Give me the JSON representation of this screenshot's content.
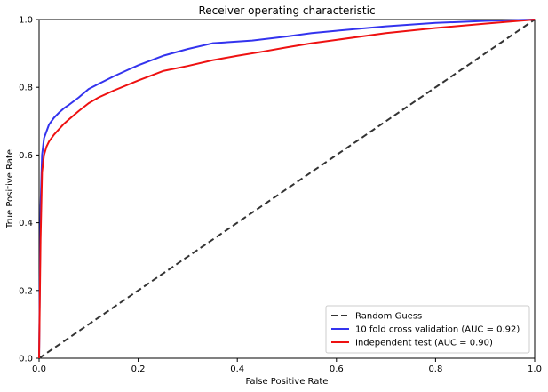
{
  "chart_data": {
    "type": "line",
    "title": "Receiver operating characteristic",
    "xlabel": "False Positive Rate",
    "ylabel": "True Positive Rate",
    "xlim": [
      0,
      1
    ],
    "ylim": [
      0,
      1
    ],
    "xticks": [
      "0.0",
      "0.2",
      "0.4",
      "0.6",
      "0.8",
      "1.0"
    ],
    "yticks": [
      "0.0",
      "0.2",
      "0.4",
      "0.6",
      "0.8",
      "1.0"
    ],
    "grid": false,
    "legend_position": "lower-right",
    "series": [
      {
        "name": "Random Guess",
        "color": "#333333",
        "style": "dashed",
        "x": [
          0,
          1
        ],
        "y": [
          0,
          1
        ]
      },
      {
        "name": "10 fold cross validation (AUC = 0.92)",
        "color": "#3333ee",
        "style": "solid",
        "x": [
          0,
          0.003,
          0.006,
          0.01,
          0.015,
          0.02,
          0.03,
          0.04,
          0.05,
          0.06,
          0.08,
          0.1,
          0.12,
          0.15,
          0.18,
          0.2,
          0.25,
          0.3,
          0.35,
          0.4,
          0.43,
          0.5,
          0.55,
          0.6,
          0.7,
          0.8,
          0.9,
          1.0
        ],
        "y": [
          0,
          0.45,
          0.6,
          0.65,
          0.67,
          0.69,
          0.71,
          0.725,
          0.738,
          0.748,
          0.77,
          0.795,
          0.81,
          0.832,
          0.852,
          0.865,
          0.893,
          0.913,
          0.93,
          0.935,
          0.938,
          0.95,
          0.96,
          0.967,
          0.98,
          0.99,
          0.996,
          1.0
        ]
      },
      {
        "name": "Independent test (AUC = 0.90)",
        "color": "#ee1111",
        "style": "solid",
        "x": [
          0,
          0.003,
          0.006,
          0.01,
          0.015,
          0.02,
          0.03,
          0.04,
          0.05,
          0.06,
          0.08,
          0.1,
          0.12,
          0.15,
          0.2,
          0.25,
          0.3,
          0.35,
          0.4,
          0.45,
          0.5,
          0.55,
          0.6,
          0.7,
          0.8,
          0.9,
          1.0
        ],
        "y": [
          0,
          0.35,
          0.55,
          0.6,
          0.625,
          0.64,
          0.66,
          0.676,
          0.692,
          0.705,
          0.73,
          0.753,
          0.77,
          0.79,
          0.82,
          0.848,
          0.863,
          0.88,
          0.893,
          0.905,
          0.918,
          0.93,
          0.94,
          0.96,
          0.975,
          0.988,
          1.0
        ]
      }
    ]
  }
}
